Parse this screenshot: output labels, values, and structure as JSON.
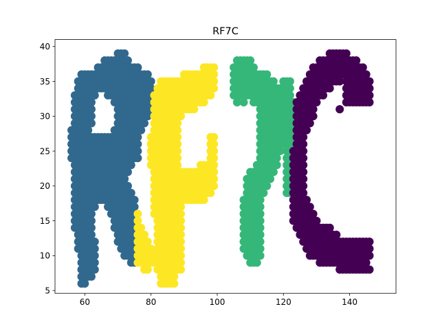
{
  "chart_data": {
    "type": "scatter",
    "title": "RF7C",
    "xlabel": "",
    "ylabel": "",
    "xlim": [
      51,
      154
    ],
    "ylim": [
      4.6,
      41
    ],
    "xticks": [
      60,
      80,
      100,
      120,
      140
    ],
    "yticks": [
      5,
      10,
      15,
      20,
      25,
      30,
      35,
      40
    ],
    "grid": false,
    "legend": "none",
    "colormap": "viridis",
    "series": [
      {
        "color": "#31688e",
        "shape": "letter R",
        "rows": [
          {
            "y": 39,
            "x": [
              70,
              72
            ]
          },
          {
            "y": 38,
            "x": [
              66,
              73
            ]
          },
          {
            "y": 37,
            "x": [
              64,
              76
            ]
          },
          {
            "y": 36,
            "x": [
              59,
              79
            ]
          },
          {
            "y": 35,
            "x": [
              58,
              80
            ]
          },
          {
            "y": 34,
            "x": [
              58,
              80
            ]
          },
          {
            "y": 33,
            "x": [
              57,
              63
            ],
            "x2": [
              67,
              80
            ]
          },
          {
            "y": 32,
            "x": [
              57,
              62
            ],
            "x2": [
              69,
              80
            ]
          },
          {
            "y": 31,
            "x": [
              57,
              62
            ],
            "x2": [
              70,
              80
            ]
          },
          {
            "y": 30,
            "x": [
              57,
              62
            ],
            "x2": [
              70,
              79
            ]
          },
          {
            "y": 29,
            "x": [
              57,
              62
            ],
            "x2": [
              70,
              78
            ]
          },
          {
            "y": 28,
            "x": [
              56,
              61
            ],
            "x2": [
              69,
              77
            ]
          },
          {
            "y": 27,
            "x": [
              56,
              76
            ]
          },
          {
            "y": 26,
            "x": [
              56,
              76
            ]
          },
          {
            "y": 25,
            "x": [
              56,
              76
            ]
          },
          {
            "y": 24,
            "x": [
              56,
              76
            ]
          },
          {
            "y": 23,
            "x": [
              57,
              74
            ]
          },
          {
            "y": 22,
            "x": [
              57,
              73
            ]
          },
          {
            "y": 21,
            "x": [
              57,
              72
            ]
          },
          {
            "y": 20,
            "x": [
              57,
              73
            ]
          },
          {
            "y": 19,
            "x": [
              57,
              74
            ]
          },
          {
            "y": 18,
            "x": [
              57,
              75
            ]
          },
          {
            "y": 17,
            "x": [
              57,
              63
            ],
            "x2": [
              67,
              75
            ]
          },
          {
            "y": 16,
            "x": [
              57,
              62
            ],
            "x2": [
              68,
              75
            ]
          },
          {
            "y": 15,
            "x": [
              57,
              62
            ],
            "x2": [
              69,
              75
            ]
          },
          {
            "y": 14,
            "x": [
              57,
              62
            ],
            "x2": [
              69,
              75
            ]
          },
          {
            "y": 13,
            "x": [
              58,
              62
            ],
            "x2": [
              70,
              76
            ]
          },
          {
            "y": 12,
            "x": [
              58,
              63
            ],
            "x2": [
              70,
              76
            ]
          },
          {
            "y": 11,
            "x": [
              58,
              63
            ],
            "x2": [
              71,
              75
            ]
          },
          {
            "y": 10,
            "x": [
              59,
              63
            ],
            "x2": [
              72,
              75
            ]
          },
          {
            "y": 9,
            "x": [
              59,
              63
            ],
            "x2": [
              74,
              75
            ]
          },
          {
            "y": 8,
            "x": [
              59,
              63
            ]
          },
          {
            "y": 7,
            "x": [
              59,
              62
            ]
          },
          {
            "y": 6,
            "x": [
              59,
              60
            ]
          }
        ]
      },
      {
        "color": "#fde725",
        "shape": "letter F",
        "rows": [
          {
            "y": 37,
            "x": [
              96,
              99
            ]
          },
          {
            "y": 36,
            "x": [
              90,
              99
            ]
          },
          {
            "y": 35,
            "x": [
              83,
              99
            ]
          },
          {
            "y": 34,
            "x": [
              82,
              99
            ]
          },
          {
            "y": 33,
            "x": [
              81,
              98
            ]
          },
          {
            "y": 32,
            "x": [
              81,
              96
            ]
          },
          {
            "y": 31,
            "x": [
              81,
              93
            ]
          },
          {
            "y": 30,
            "x": [
              81,
              89
            ]
          },
          {
            "y": 29,
            "x": [
              81,
              88
            ]
          },
          {
            "y": 28,
            "x": [
              81,
              88
            ]
          },
          {
            "y": 27,
            "x": [
              80,
              88
            ],
            "x2": [
              98,
              99
            ]
          },
          {
            "y": 26,
            "x": [
              80,
              88
            ],
            "x2": [
              98,
              99
            ]
          },
          {
            "y": 25,
            "x": [
              80,
              88
            ],
            "x2": [
              98,
              99
            ]
          },
          {
            "y": 24,
            "x": [
              80,
              88
            ],
            "x2": [
              98,
              99
            ]
          },
          {
            "y": 23,
            "x": [
              80,
              88
            ],
            "x2": [
              95,
              99
            ]
          },
          {
            "y": 22,
            "x": [
              81,
              99
            ]
          },
          {
            "y": 21,
            "x": [
              81,
              99
            ]
          },
          {
            "y": 20,
            "x": [
              81,
              99
            ]
          },
          {
            "y": 19,
            "x": [
              81,
              98
            ]
          },
          {
            "y": 18,
            "x": [
              81,
              96
            ]
          },
          {
            "y": 17,
            "x": [
              81,
              89
            ]
          },
          {
            "y": 16,
            "x": [
              76,
              76
            ],
            "x2": [
              81,
              89
            ]
          },
          {
            "y": 15,
            "x": [
              76,
              76
            ],
            "x2": [
              82,
              89
            ]
          },
          {
            "y": 14,
            "x": [
              76,
              77
            ],
            "x2": [
              82,
              89
            ]
          },
          {
            "y": 13,
            "x": [
              76,
              78
            ],
            "x2": [
              82,
              89
            ]
          },
          {
            "y": 12,
            "x": [
              76,
              79
            ],
            "x2": [
              82,
              89
            ]
          },
          {
            "y": 11,
            "x": [
              76,
              80
            ],
            "x2": [
              82,
              89
            ]
          },
          {
            "y": 10,
            "x": [
              76,
              89
            ]
          },
          {
            "y": 9,
            "x": [
              76,
              89
            ]
          },
          {
            "y": 8,
            "x": [
              78,
              79
            ],
            "x2": [
              82,
              89
            ]
          },
          {
            "y": 7,
            "x": [
              83,
              87
            ]
          },
          {
            "y": 6,
            "x": [
              83,
              87
            ]
          }
        ]
      },
      {
        "color": "#35b779",
        "shape": "digit 7",
        "rows": [
          {
            "y": 38,
            "x": [
              106,
              110
            ]
          },
          {
            "y": 37,
            "x": [
              105,
              111
            ]
          },
          {
            "y": 36,
            "x": [
              105,
              115
            ]
          },
          {
            "y": 35,
            "x": [
              105,
              117
            ],
            "x2": [
              120,
              122
            ]
          },
          {
            "y": 34,
            "x": [
              105,
              122
            ]
          },
          {
            "y": 33,
            "x": [
              105,
              122
            ]
          },
          {
            "y": 32,
            "x": [
              106,
              106
            ],
            "x2": [
              108,
              108
            ],
            "x3": [
              111,
              123
            ]
          },
          {
            "y": 31,
            "x": [
              113,
              123
            ]
          },
          {
            "y": 30,
            "x": [
              113,
              123
            ]
          },
          {
            "y": 29,
            "x": [
              113,
              123
            ]
          },
          {
            "y": 28,
            "x": [
              113,
              123
            ]
          },
          {
            "y": 27,
            "x": [
              113,
              123
            ]
          },
          {
            "y": 26,
            "x": [
              113,
              123
            ]
          },
          {
            "y": 25,
            "x": [
              113,
              119
            ],
            "x2": [
              121,
              123
            ]
          },
          {
            "y": 24,
            "x": [
              113,
              118
            ],
            "x2": [
              121,
              122
            ]
          },
          {
            "y": 23,
            "x": [
              112,
              118
            ],
            "x2": [
              121,
              122
            ]
          },
          {
            "y": 22,
            "x": [
              110,
              117
            ],
            "x2": [
              121,
              122
            ]
          },
          {
            "y": 21,
            "x": [
              109,
              116
            ],
            "x2": [
              121,
              122
            ]
          },
          {
            "y": 20,
            "x": [
              109,
              115
            ],
            "x2": [
              121,
              122
            ]
          },
          {
            "y": 19,
            "x": [
              109,
              114
            ],
            "x2": [
              121,
              122
            ]
          },
          {
            "y": 18,
            "x": [
              108,
              113
            ]
          },
          {
            "y": 17,
            "x": [
              108,
              113
            ]
          },
          {
            "y": 16,
            "x": [
              108,
              113
            ]
          },
          {
            "y": 15,
            "x": [
              108,
              113
            ]
          },
          {
            "y": 14,
            "x": [
              108,
              113
            ]
          },
          {
            "y": 13,
            "x": [
              108,
              113
            ]
          },
          {
            "y": 12,
            "x": [
              108,
              113
            ]
          },
          {
            "y": 11,
            "x": [
              108,
              113
            ]
          },
          {
            "y": 10,
            "x": [
              109,
              113
            ]
          },
          {
            "y": 9,
            "x": [
              110,
              112
            ]
          }
        ]
      },
      {
        "color": "#440154",
        "shape": "letter C",
        "rows": [
          {
            "y": 39,
            "x": [
              134,
              139
            ]
          },
          {
            "y": 38,
            "x": [
              131,
              142
            ]
          },
          {
            "y": 37,
            "x": [
              129,
              144
            ]
          },
          {
            "y": 36,
            "x": [
              128,
              145
            ]
          },
          {
            "y": 35,
            "x": [
              127,
              137
            ],
            "x2": [
              139,
              146
            ]
          },
          {
            "y": 34,
            "x": [
              126,
              134
            ],
            "x2": [
              139,
              146
            ]
          },
          {
            "y": 33,
            "x": [
              125,
              132
            ],
            "x2": [
              139,
              146
            ]
          },
          {
            "y": 32,
            "x": [
              124,
              130
            ],
            "x2": [
              139,
              146
            ]
          },
          {
            "y": 31,
            "x": [
              124,
              129
            ],
            "x2": [
              137,
              137
            ]
          },
          {
            "y": 30,
            "x": [
              124,
              129
            ]
          },
          {
            "y": 29,
            "x": [
              124,
              128
            ]
          },
          {
            "y": 28,
            "x": [
              124,
              127
            ]
          },
          {
            "y": 27,
            "x": [
              124,
              126
            ]
          },
          {
            "y": 26,
            "x": [
              124,
              126
            ]
          },
          {
            "y": 25,
            "x": [
              123,
              126
            ]
          },
          {
            "y": 24,
            "x": [
              123,
              126
            ]
          },
          {
            "y": 23,
            "x": [
              123,
              126
            ]
          },
          {
            "y": 22,
            "x": [
              123,
              126
            ]
          },
          {
            "y": 21,
            "x": [
              123,
              126
            ]
          },
          {
            "y": 20,
            "x": [
              123,
              126
            ]
          },
          {
            "y": 19,
            "x": [
              123,
              126
            ]
          },
          {
            "y": 18,
            "x": [
              123,
              127
            ]
          },
          {
            "y": 17,
            "x": [
              123,
              128
            ]
          },
          {
            "y": 16,
            "x": [
              123,
              129
            ]
          },
          {
            "y": 15,
            "x": [
              123,
              130
            ]
          },
          {
            "y": 14,
            "x": [
              124,
              134
            ]
          },
          {
            "y": 13,
            "x": [
              125,
              136
            ]
          },
          {
            "y": 12,
            "x": [
              126,
              146
            ]
          },
          {
            "y": 11,
            "x": [
              127,
              146
            ]
          },
          {
            "y": 10,
            "x": [
              128,
              146
            ]
          },
          {
            "y": 9,
            "x": [
              131,
              145
            ]
          },
          {
            "y": 8,
            "x": [
              137,
              146
            ]
          }
        ]
      }
    ]
  }
}
